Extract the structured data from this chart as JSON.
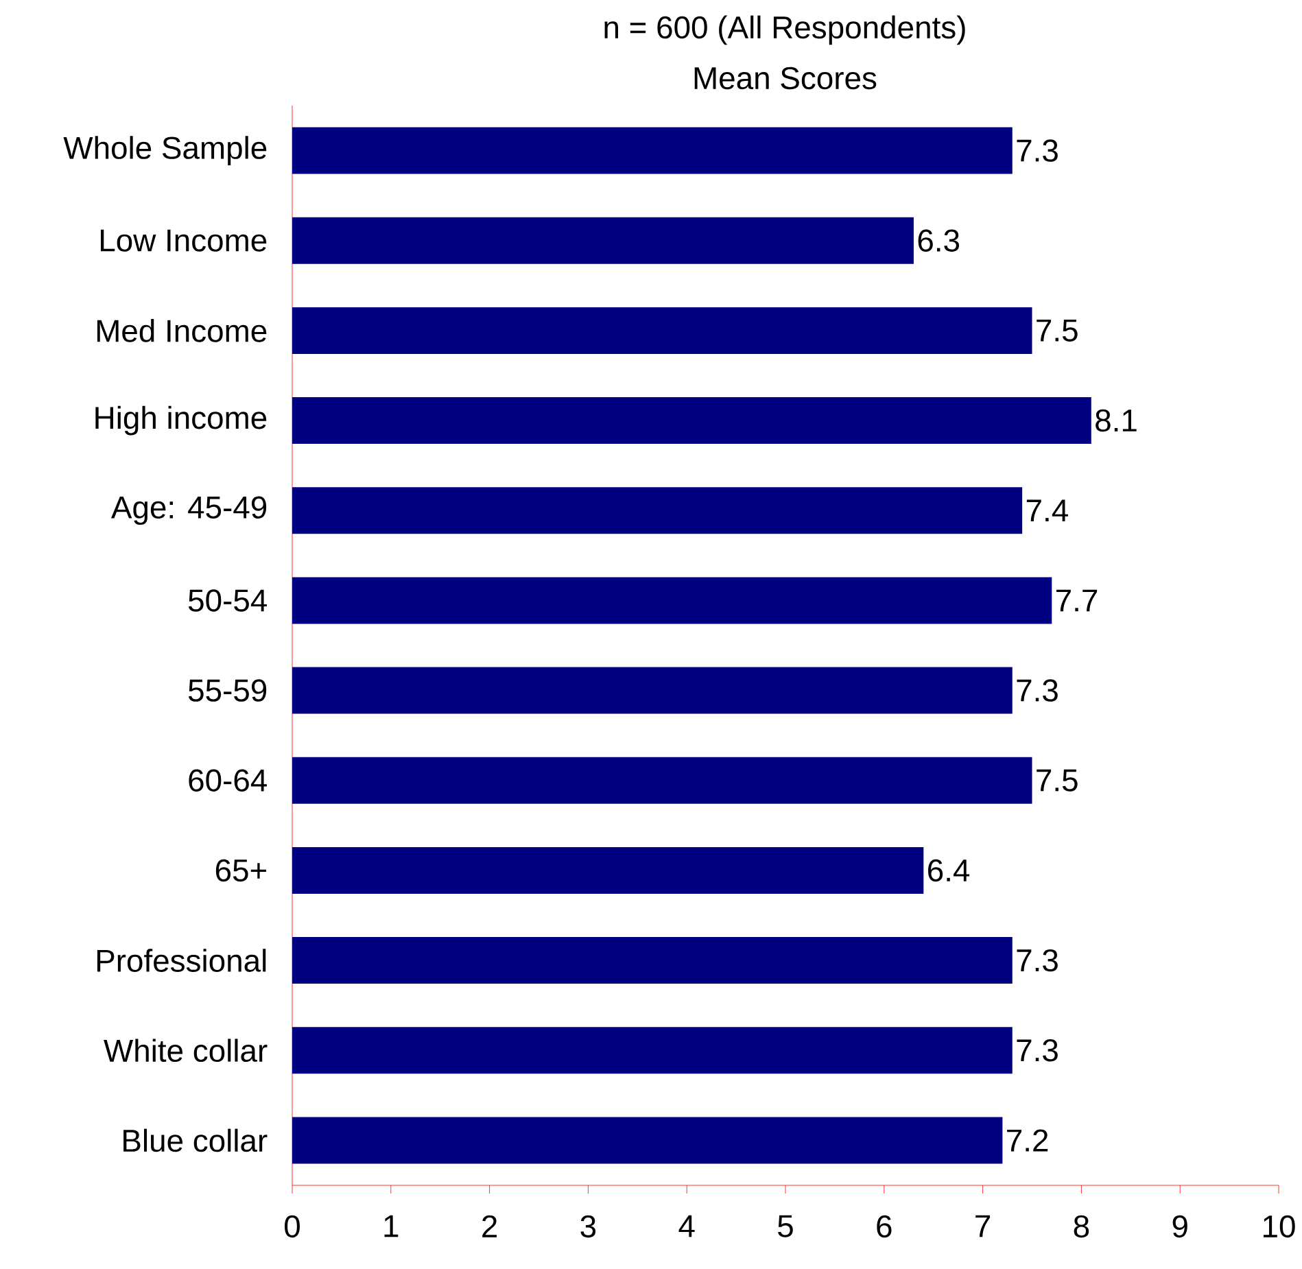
{
  "chart_data": {
    "type": "bar",
    "orientation": "horizontal",
    "title": "n = 600 (All Respondents)",
    "subtitle": "Mean Scores",
    "categories": [
      "Whole Sample",
      "Low Income",
      "Med Income",
      "High income",
      "Age: 45-49",
      "50-54",
      "55-59",
      "60-64",
      "65+",
      "Professional",
      "White collar",
      "Blue collar"
    ],
    "values": [
      7.3,
      6.3,
      7.5,
      8.1,
      7.4,
      7.7,
      7.3,
      7.5,
      6.4,
      7.3,
      7.3,
      7.2
    ],
    "color": "#000080",
    "xlim": [
      0,
      10
    ],
    "xticks": [
      0,
      1,
      2,
      3,
      4,
      5,
      6,
      7,
      8,
      9,
      10
    ],
    "data_labels": true
  }
}
